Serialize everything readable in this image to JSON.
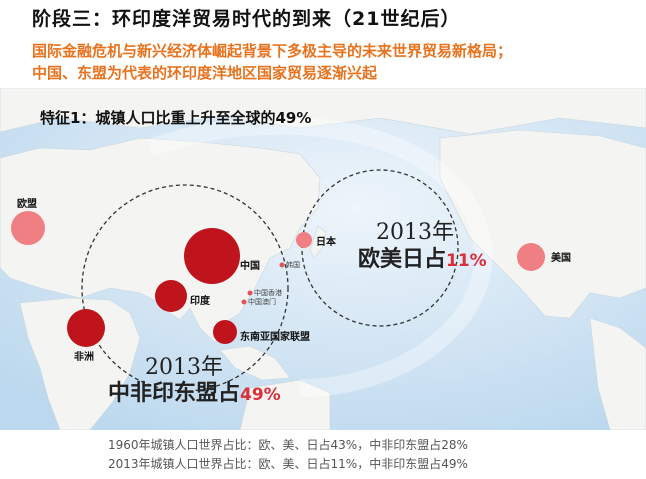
{
  "title": "阶段三：环印度洋贸易时代的到来（21世纪后）",
  "subtitle_lines": [
    "国际金融危机与新兴经济体崛起背景下多极主导的未来世界贸易新格局；",
    "中国、东盟为代表的环印度洋地区国家贸易逐渐兴起"
  ],
  "map": {
    "feature_label": "特征1：城镇人口比重上升至全球的49%",
    "bubbles": [
      {
        "name": "欧盟",
        "color": "#f07f83"
      },
      {
        "name": "中国",
        "color": "#c0141c"
      },
      {
        "name": "印度",
        "color": "#c0141c"
      },
      {
        "name": "非洲",
        "color": "#c0141c"
      },
      {
        "name": "东南亚国家联盟",
        "color": "#c0141c"
      },
      {
        "name": "日本",
        "color": "#f07f83"
      },
      {
        "name": "美国",
        "color": "#f07f83"
      }
    ],
    "small_labels": [
      "韩国",
      "中国香港",
      "中国澳门"
    ],
    "group_west": {
      "year": "2013年",
      "text": "中非印东盟占",
      "pct": "49%"
    },
    "group_east": {
      "year": "2013年",
      "text": "欧美日占",
      "pct": "11%"
    }
  },
  "footer": [
    "1960年城镇人口世界占比：欧、美、日占43%，中非印东盟占28%",
    "2013年城镇人口世界占比：欧、美、日占11%，中非印东盟占49%"
  ]
}
